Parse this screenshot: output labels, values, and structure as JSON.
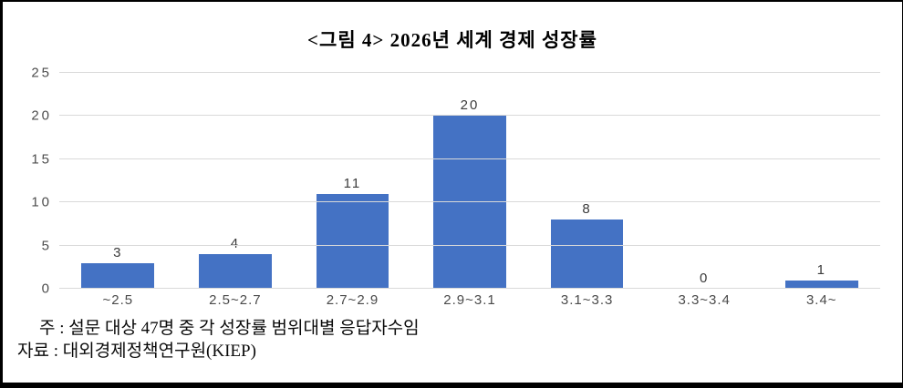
{
  "frame": {
    "background": "#ffffff",
    "border_color": "#000000"
  },
  "chart_data": {
    "type": "bar",
    "title": "<그림 4> 2026년 세계 경제 성장률",
    "categories": [
      "~2.5",
      "2.5~2.7",
      "2.7~2.9",
      "2.9~3.1",
      "3.1~3.3",
      "3.3~3.4",
      "3.4~"
    ],
    "values": [
      3,
      4,
      11,
      20,
      8,
      0,
      1
    ],
    "xlabel": "",
    "ylabel": "",
    "ylim": [
      0,
      25
    ],
    "yticks": [
      0,
      5,
      10,
      15,
      20,
      25
    ],
    "grid": true,
    "legend": "none",
    "data_labels": true,
    "bar_color": "#4472c4",
    "gridline_color": "#d9d9d9",
    "tick_label_color": "#4a4a4a"
  },
  "notes": {
    "line1": "주 : 설문 대상 47명 중 각 성장률 범위대별 응답자수임",
    "line2": "자료 : 대외경제정책연구원(KIEP)"
  }
}
